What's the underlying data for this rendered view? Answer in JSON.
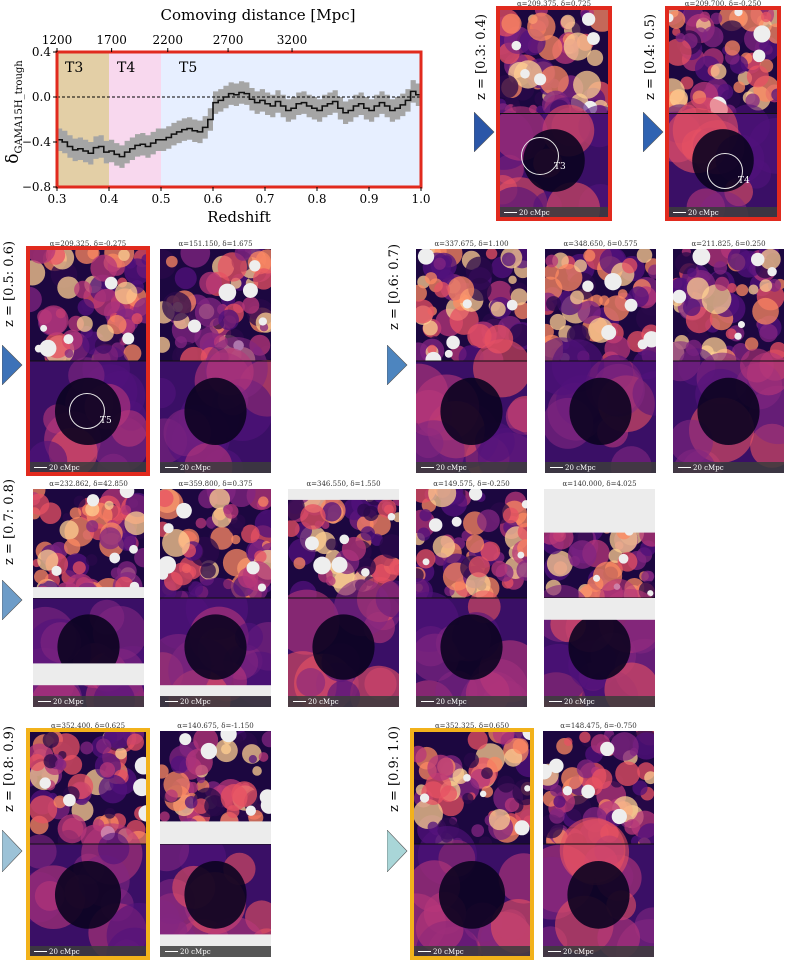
{
  "chart_data": {
    "type": "line",
    "top_axis_label": "Comoving distance [Mpc]",
    "top_ticks": [
      "1200",
      "1700",
      "2200",
      "2700",
      "3200"
    ],
    "xlabel": "Redshift",
    "ylabel": "δGAMA15H_trough",
    "ylabel_main": "δ",
    "ylabel_sub": "GAMA15H_trough",
    "xlim": [
      0.3,
      1.0
    ],
    "ylim": [
      -0.8,
      0.4
    ],
    "x_ticks": [
      "0.3",
      "0.4",
      "0.5",
      "0.6",
      "0.7",
      "0.8",
      "0.9",
      "1.0"
    ],
    "y_ticks": [
      "0.4",
      "0.0",
      "−0.4",
      "−0.8"
    ],
    "regions": [
      {
        "label": "T3",
        "from": 0.3,
        "to": 0.4,
        "color": "#e3cfa6"
      },
      {
        "label": "T4",
        "from": 0.4,
        "to": 0.5,
        "color": "#f8d8ee"
      },
      {
        "label": "T5",
        "from": 0.5,
        "to": 1.0,
        "color": "#e7efff"
      }
    ],
    "frame_color": "#e12a1e",
    "series": [
      {
        "x": [
          0.305,
          0.315,
          0.325,
          0.335,
          0.345,
          0.355,
          0.365,
          0.375,
          0.385,
          0.395,
          0.405,
          0.415,
          0.425,
          0.435,
          0.445,
          0.455,
          0.465,
          0.475,
          0.485,
          0.495,
          0.505,
          0.515,
          0.525,
          0.535,
          0.545,
          0.555,
          0.565,
          0.575,
          0.585,
          0.595,
          0.605,
          0.615,
          0.625,
          0.635,
          0.645,
          0.655,
          0.665,
          0.675,
          0.685,
          0.695,
          0.705,
          0.715,
          0.725,
          0.735,
          0.745,
          0.755,
          0.765,
          0.775,
          0.785,
          0.795,
          0.805,
          0.815,
          0.825,
          0.835,
          0.845,
          0.855,
          0.865,
          0.875,
          0.885,
          0.895,
          0.905,
          0.915,
          0.925,
          0.935,
          0.945,
          0.955,
          0.965,
          0.975,
          0.985,
          0.995
        ],
        "y": [
          -0.38,
          -0.4,
          -0.44,
          -0.47,
          -0.46,
          -0.48,
          -0.5,
          -0.45,
          -0.44,
          -0.49,
          -0.48,
          -0.51,
          -0.53,
          -0.49,
          -0.46,
          -0.43,
          -0.42,
          -0.44,
          -0.41,
          -0.38,
          -0.38,
          -0.36,
          -0.33,
          -0.31,
          -0.29,
          -0.28,
          -0.3,
          -0.31,
          -0.27,
          -0.2,
          -0.05,
          -0.03,
          0.0,
          0.03,
          0.02,
          0.04,
          0.03,
          -0.02,
          -0.05,
          -0.03,
          -0.06,
          -0.08,
          -0.04,
          -0.08,
          -0.12,
          -0.1,
          -0.06,
          -0.05,
          -0.08,
          -0.1,
          -0.12,
          -0.08,
          -0.06,
          -0.04,
          -0.1,
          -0.14,
          -0.12,
          -0.08,
          -0.06,
          -0.1,
          -0.12,
          -0.08,
          -0.05,
          -0.08,
          -0.12,
          -0.1,
          -0.07,
          -0.03,
          0.05,
          0.02
        ],
        "err": 0.1
      }
    ],
    "reference_line": 0.0
  },
  "panels": [
    {
      "title": "α=209.375, δ=0.725",
      "label": "T3"
    },
    {
      "title": "α=209.700, δ=-0.250",
      "label": "T4"
    },
    {
      "title": "α=209.325, δ=-0.275",
      "label": "T5"
    },
    {
      "title": "α=151.150, δ=1.675"
    },
    {
      "title": "α=337.675, δ=1.100"
    },
    {
      "title": "α=348.650, δ=0.575"
    },
    {
      "title": "α=211.825, δ=0.250"
    },
    {
      "title": "α=232.862, δ=42.850"
    },
    {
      "title": "α=359.800, δ=0.375"
    },
    {
      "title": "α=346.550, δ=1.550"
    },
    {
      "title": "α=149.575, δ=-0.250"
    },
    {
      "title": "α=140.000, δ=4.025"
    },
    {
      "title": "α=352.400, δ=0.625"
    },
    {
      "title": "α=140.675, δ=-1.150"
    },
    {
      "title": "α=352.325, δ=0.650"
    },
    {
      "title": "α=148.475, δ=-0.750"
    }
  ],
  "scale_bar": "20 cMpc",
  "rows": [
    {
      "label": "z = [0.3: 0.4)",
      "arrow_color": "#2a56a8"
    },
    {
      "label": "z = [0.4: 0.5)",
      "arrow_color": "#2f63b2"
    },
    {
      "label": "z = [0.5: 0.6)",
      "arrow_color": "#3d72b8"
    },
    {
      "label": "z = [0.6: 0.7)",
      "arrow_color": "#4d85bf"
    },
    {
      "label": "z = [0.7: 0.8)",
      "arrow_color": "#6d9cc8"
    },
    {
      "label": "z = [0.8: 0.9)",
      "arrow_color": "#9cc2d7"
    },
    {
      "label": "z = [0.9: 1.0)",
      "arrow_color": "#a9d6d8"
    }
  ],
  "colors": {
    "highlight_red": "#e12a1e",
    "highlight_gold": "#f2b21b"
  }
}
